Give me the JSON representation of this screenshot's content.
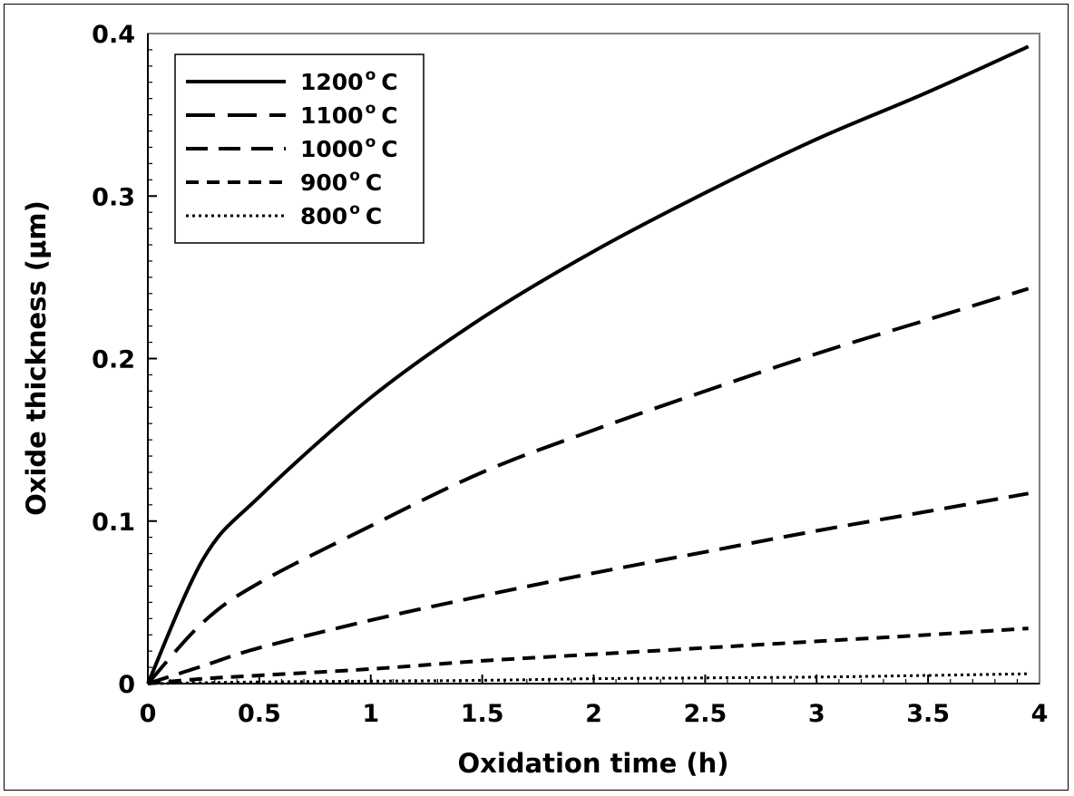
{
  "chart_data": {
    "type": "line",
    "title": "",
    "xlabel": "Oxidation time (h)",
    "ylabel": "Oxide thickness (μm)",
    "xlim": [
      0,
      4
    ],
    "ylim": [
      0,
      0.4
    ],
    "xticks": [
      0,
      0.5,
      1,
      1.5,
      2,
      2.5,
      3,
      3.5,
      4
    ],
    "xtick_labels": [
      "0",
      "0.5",
      "1",
      "1.5",
      "2",
      "2.5",
      "3",
      "3.5",
      "4"
    ],
    "yticks": [
      0,
      0.1,
      0.2,
      0.3,
      0.4
    ],
    "ytick_labels": [
      "0",
      "0.1",
      "0.2",
      "0.3",
      "0.4"
    ],
    "grid": false,
    "legend_position": "top-left",
    "series": [
      {
        "name": "1200",
        "unit_sup": "o",
        "unit": "C",
        "style": "solid",
        "x": [
          0,
          0.25,
          0.5,
          1,
          1.5,
          2,
          2.5,
          3,
          3.5,
          3.95
        ],
        "values": [
          0,
          0.077,
          0.115,
          0.176,
          0.225,
          0.266,
          0.302,
          0.335,
          0.364,
          0.392
        ]
      },
      {
        "name": "1100",
        "unit_sup": "o",
        "unit": "C",
        "style": "long-dash",
        "x": [
          0,
          0.25,
          0.5,
          1,
          1.5,
          2,
          2.5,
          3,
          3.5,
          3.95
        ],
        "values": [
          0,
          0.038,
          0.062,
          0.097,
          0.13,
          0.156,
          0.18,
          0.203,
          0.224,
          0.243
        ]
      },
      {
        "name": "1000",
        "unit_sup": "o",
        "unit": "C",
        "style": "dash",
        "x": [
          0,
          0.25,
          0.5,
          1,
          1.5,
          2,
          2.5,
          3,
          3.5,
          3.95
        ],
        "values": [
          0,
          0.011,
          0.022,
          0.039,
          0.054,
          0.068,
          0.081,
          0.094,
          0.106,
          0.117
        ]
      },
      {
        "name": "900",
        "unit_sup": "o",
        "unit": "C",
        "style": "short-dash",
        "x": [
          0,
          0.25,
          0.5,
          1,
          1.5,
          2,
          2.5,
          3,
          3.5,
          3.95
        ],
        "values": [
          0,
          0.003,
          0.005,
          0.009,
          0.014,
          0.018,
          0.022,
          0.026,
          0.03,
          0.034
        ]
      },
      {
        "name": "800",
        "unit_sup": "o",
        "unit": "C",
        "style": "dotted",
        "x": [
          0,
          0.25,
          0.5,
          1,
          1.5,
          2,
          2.5,
          3,
          3.5,
          3.95
        ],
        "values": [
          0,
          0.0005,
          0.001,
          0.0015,
          0.002,
          0.003,
          0.0035,
          0.004,
          0.005,
          0.006
        ]
      }
    ]
  }
}
